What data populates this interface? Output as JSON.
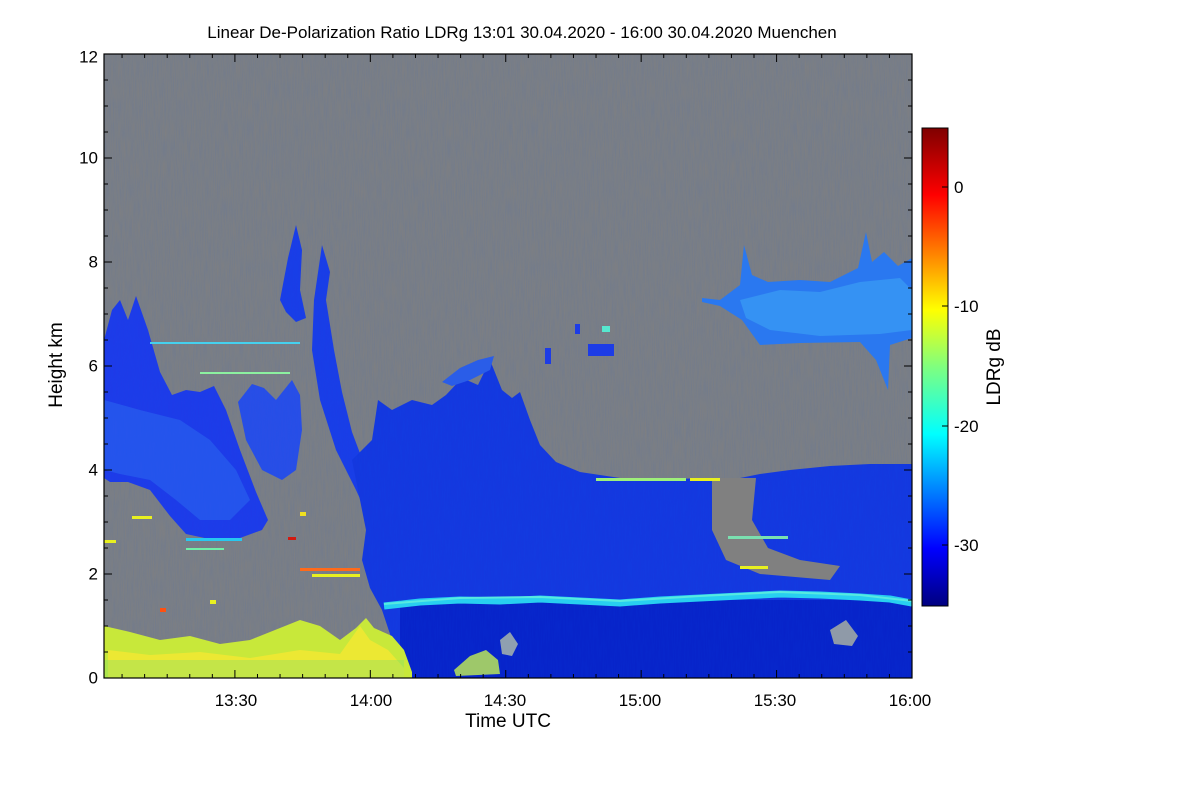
{
  "chart_data": {
    "type": "heatmap",
    "title": "Linear De-Polarization Ratio LDRg   13:01 30.04.2020 - 16:00 30.04.2020 Muenchen",
    "xlabel": "Time UTC",
    "ylabel": "Height km",
    "xlim": [
      "13:01",
      "16:00"
    ],
    "ylim": [
      0,
      12
    ],
    "x_ticks": [
      "13:30",
      "14:00",
      "14:30",
      "15:00",
      "15:30",
      "16:00"
    ],
    "y_ticks": [
      "0",
      "2",
      "4",
      "6",
      "8",
      "10",
      "12"
    ],
    "colorbar": {
      "label": "LDRg dB",
      "range": [
        -35,
        5
      ],
      "ticks": [
        "0",
        "-10",
        "-20",
        "-30"
      ],
      "colormap": "jet"
    },
    "background_color": "#808080",
    "features": [
      {
        "name": "boundary layer aerosol",
        "time": [
          "13:01",
          "14:05"
        ],
        "height_km": [
          0,
          1.0
        ],
        "ldr_db": -12
      },
      {
        "name": "melting layer",
        "time": [
          "14:02",
          "16:00"
        ],
        "height_km": [
          1.4,
          1.6
        ],
        "ldr_db": -22
      },
      {
        "name": "mid-level cloud",
        "time": [
          "14:00",
          "16:00"
        ],
        "height_km": [
          0,
          4.0
        ],
        "ldr_db": -31
      },
      {
        "name": "early cloud layer",
        "time": [
          "13:01",
          "13:45"
        ],
        "height_km": [
          2.6,
          6.5
        ],
        "ldr_db": -29
      },
      {
        "name": "upper cloud",
        "time": [
          "15:23",
          "16:00"
        ],
        "height_km": [
          6.3,
          8.1
        ],
        "ldr_db": -26
      }
    ]
  }
}
